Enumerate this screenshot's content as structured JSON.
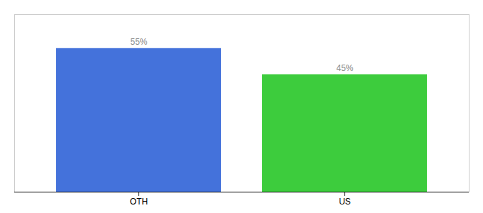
{
  "chart_data": {
    "type": "bar",
    "categories": [
      "OTH",
      "US"
    ],
    "values": [
      55,
      45
    ],
    "value_labels": [
      "55%",
      "45%"
    ],
    "colors": [
      "#4472db",
      "#3dcc3d"
    ],
    "ylim": [
      0,
      68
    ],
    "data_labels": true,
    "grid": false,
    "tick_labels": "x"
  }
}
